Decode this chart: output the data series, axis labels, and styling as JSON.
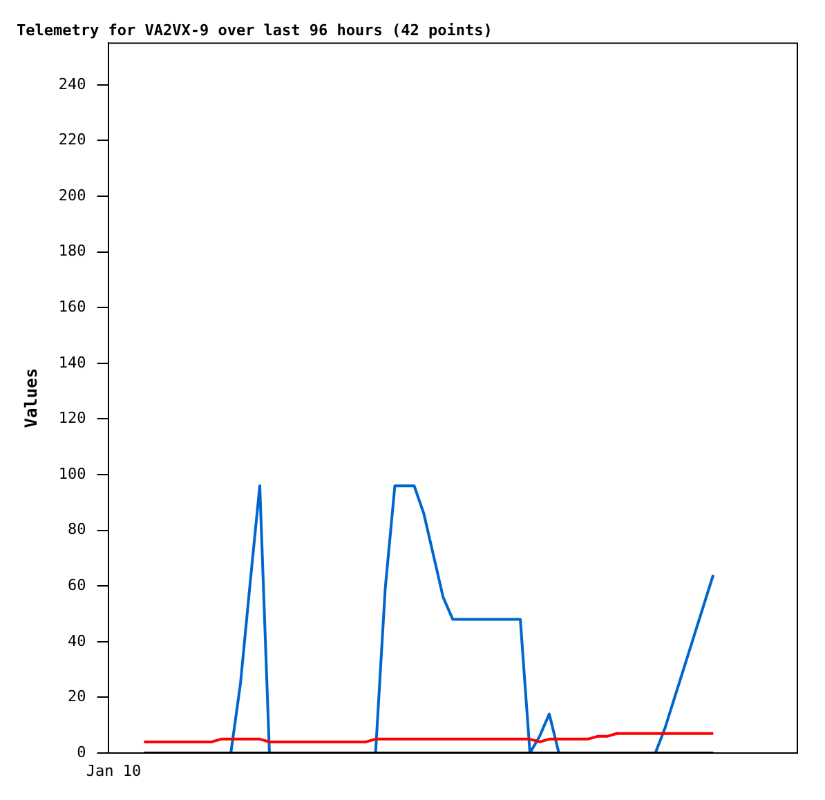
{
  "chart_data": {
    "type": "line",
    "title": "Telemetry for VA2VX-9 over last 96 hours (42 points)",
    "ylabel": "Values",
    "categories": [
      null,
      null,
      null,
      null,
      null,
      null,
      null,
      null,
      null,
      null,
      null,
      null,
      null,
      null,
      null,
      null,
      null,
      null,
      null,
      null,
      null,
      null,
      null,
      null,
      null,
      null,
      null,
      null,
      null,
      null,
      null,
      null,
      null,
      null,
      null,
      null,
      null,
      null,
      null,
      null,
      null,
      null,
      null,
      null,
      null,
      null,
      null,
      null,
      null,
      null,
      null,
      null,
      null,
      null,
      null,
      null,
      null,
      null,
      null,
      null
    ],
    "annotations": [
      "Jan 10"
    ],
    "tick_labels": "y",
    "ylim": [
      0,
      255
    ],
    "yticks": [
      0,
      20,
      40,
      60,
      80,
      100,
      120,
      140,
      160,
      180,
      200,
      220,
      240
    ],
    "grid": false,
    "legend": false,
    "marker": "none",
    "line_style": "solid",
    "series": [
      {
        "color": "#ff0000",
        "values": [
          4,
          4,
          4,
          4,
          4,
          4,
          4,
          4,
          5,
          5,
          5,
          5,
          5,
          4,
          4,
          4,
          4,
          4,
          4,
          4,
          4,
          4,
          4,
          4,
          5,
          5,
          5,
          5,
          5,
          5,
          5,
          5,
          5,
          5,
          5,
          5,
          5,
          5,
          5,
          5,
          5,
          4,
          5,
          5,
          5,
          5,
          5,
          6,
          6,
          7,
          7,
          7,
          7,
          7,
          7,
          7,
          7,
          7,
          7,
          7
        ]
      },
      {
        "color": "#000000",
        "values": [
          0,
          0,
          0,
          0,
          0,
          0,
          0,
          0,
          0,
          0,
          0,
          0,
          0,
          0,
          0,
          0,
          0,
          0,
          0,
          0,
          0,
          0,
          0,
          0,
          0,
          0,
          0,
          0,
          0,
          0,
          0,
          0,
          0,
          0,
          0,
          0,
          0,
          0,
          0,
          0,
          0,
          0,
          0,
          0,
          0,
          0,
          0,
          0,
          0,
          0,
          0,
          0,
          0,
          0,
          0,
          0,
          0,
          0,
          0,
          0
        ]
      },
      {
        "color": "#0066cc",
        "values": [
          null,
          null,
          null,
          null,
          null,
          null,
          null,
          null,
          null,
          0,
          25,
          61,
          96,
          0,
          0,
          0,
          0,
          0,
          0,
          0,
          0,
          0,
          0,
          0,
          0,
          59,
          96,
          96,
          96,
          86,
          71,
          56,
          48,
          48,
          48,
          48,
          48,
          48,
          48,
          48,
          0,
          6,
          14,
          0,
          0,
          0,
          0,
          0,
          0,
          0,
          0,
          0,
          0,
          0,
          9,
          20,
          31,
          42,
          53,
          64
        ]
      }
    ]
  }
}
